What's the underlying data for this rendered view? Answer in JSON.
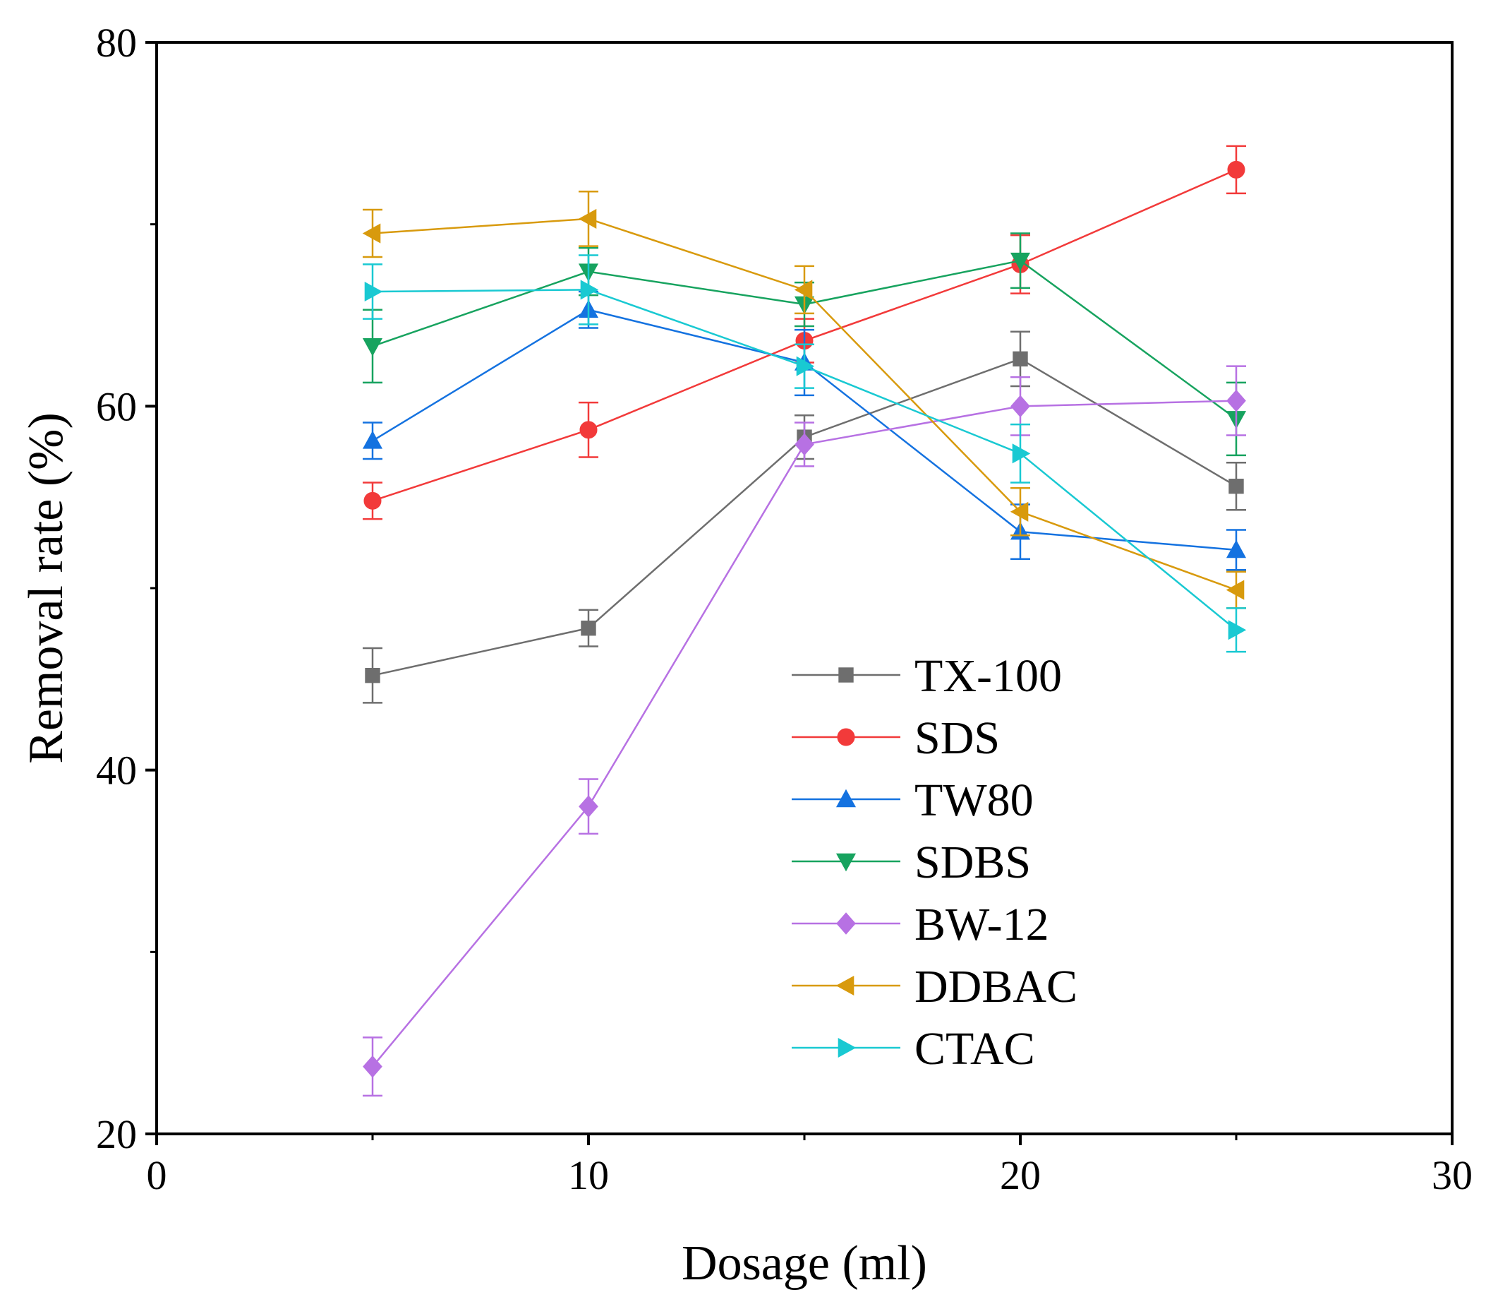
{
  "chart_data": {
    "type": "line",
    "title": "",
    "xlabel": "Dosage (ml)",
    "ylabel": "Removal rate (%)",
    "xlim": [
      0,
      30
    ],
    "ylim": [
      20,
      80
    ],
    "xticks": [
      0,
      10,
      20,
      30
    ],
    "yticks": [
      20,
      40,
      60,
      80
    ],
    "x_minor_ticks": [
      5,
      15,
      25
    ],
    "y_minor_ticks": [
      30,
      50,
      70
    ],
    "grid": false,
    "legend_position": "lower-right",
    "x": [
      5,
      10,
      15,
      20,
      25
    ],
    "series": [
      {
        "name": "TX-100",
        "color": "#6e6e6e",
        "marker": "square",
        "values": [
          45.2,
          47.8,
          58.3,
          62.6,
          55.6
        ],
        "errors": [
          1.5,
          1.0,
          1.2,
          1.5,
          1.3
        ]
      },
      {
        "name": "SDS",
        "color": "#f23a3a",
        "marker": "circle",
        "values": [
          54.8,
          58.7,
          63.6,
          67.8,
          73.0
        ],
        "errors": [
          1.0,
          1.5,
          1.2,
          1.6,
          1.3
        ]
      },
      {
        "name": "TW80",
        "color": "#1472e0",
        "marker": "triangle-up",
        "values": [
          58.1,
          65.3,
          62.4,
          53.1,
          52.1
        ],
        "errors": [
          1.0,
          1.0,
          1.8,
          1.5,
          1.1
        ]
      },
      {
        "name": "SDBS",
        "color": "#17a35f",
        "marker": "triangle-down",
        "values": [
          63.3,
          67.4,
          65.6,
          68.0,
          59.3
        ],
        "errors": [
          2.0,
          1.3,
          1.2,
          1.5,
          2.0
        ]
      },
      {
        "name": "BW-12",
        "color": "#b771e3",
        "marker": "diamond",
        "values": [
          23.7,
          38.0,
          57.9,
          60.0,
          60.3
        ],
        "errors": [
          1.6,
          1.5,
          1.2,
          1.6,
          1.9
        ]
      },
      {
        "name": "DDBAC",
        "color": "#d89a0d",
        "marker": "triangle-left",
        "values": [
          69.5,
          70.3,
          66.4,
          54.2,
          49.9
        ],
        "errors": [
          1.3,
          1.5,
          1.3,
          1.3,
          1.0
        ]
      },
      {
        "name": "CTAC",
        "color": "#19c9d2",
        "marker": "triangle-right",
        "values": [
          66.3,
          66.4,
          62.2,
          57.4,
          47.7
        ],
        "errors": [
          1.5,
          1.9,
          1.2,
          1.6,
          1.2
        ]
      }
    ]
  }
}
